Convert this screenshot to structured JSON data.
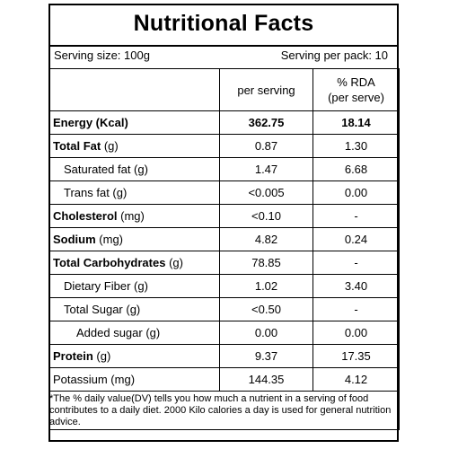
{
  "title": "Nutritional Facts",
  "serving_size": "Serving size: 100g",
  "serving_per_pack": "Serving per pack: 10",
  "headers": {
    "per_serving": "per serving",
    "rda_line1": "% RDA",
    "rda_line2": "(per serve)"
  },
  "rows": [
    {
      "bold": "Energy (Kcal)",
      "rest": "",
      "per_serving": "362.75",
      "rda": "18.14"
    },
    {
      "bold": "Total Fat",
      "rest": " (g)",
      "per_serving": "0.87",
      "rda": "1.30"
    },
    {
      "bold": "",
      "rest": "Saturated fat (g)",
      "per_serving": "1.47",
      "rda": "6.68"
    },
    {
      "bold": "",
      "rest": "Trans fat (g)",
      "per_serving": "<0.005",
      "rda": "0.00"
    },
    {
      "bold": "Cholesterol",
      "rest": " (mg)",
      "per_serving": "<0.10",
      "rda": "-"
    },
    {
      "bold": "Sodium",
      "rest": " (mg)",
      "per_serving": "4.82",
      "rda": "0.24"
    },
    {
      "bold": "Total Carbohydrates",
      "rest": " (g)",
      "per_serving": "78.85",
      "rda": "-"
    },
    {
      "bold": "",
      "rest": "Dietary Fiber (g)",
      "per_serving": "1.02",
      "rda": "3.40"
    },
    {
      "bold": "",
      "rest": "Total Sugar (g)",
      "per_serving": "<0.50",
      "rda": "-"
    },
    {
      "bold": "",
      "rest": "Added sugar (g)",
      "per_serving": "0.00",
      "rda": "0.00"
    },
    {
      "bold": "Protein",
      "rest": " (g)",
      "per_serving": "9.37",
      "rda": "17.35"
    },
    {
      "bold": "",
      "rest": "Potassium (mg)",
      "per_serving": "144.35",
      "rda": "4.12"
    }
  ],
  "footnote": "*The % daily value(DV) tells you how much a nutrient in a serving of food contributes to a daily diet. 2000 Kilo calories a day is used for general nutrition advice."
}
